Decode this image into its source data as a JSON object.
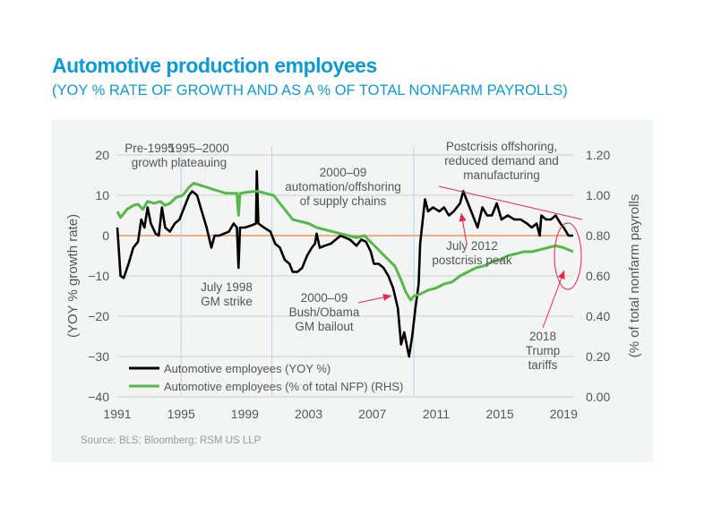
{
  "chart_data": {
    "type": "line",
    "title": "Automotive production employees",
    "subtitle": "(YOY % RATE OF GROWTH AND AS A % OF TOTAL NONFARM PAYROLLS)",
    "ylabel": "(YOY % growth rate)",
    "y2label": "(% of total nonfarm payrolls",
    "xlim": [
      1991,
      2019.6
    ],
    "ylim": [
      -40,
      20
    ],
    "y2lim": [
      0,
      1.2
    ],
    "xticks": [
      "1991",
      "1995",
      "1999",
      "2003",
      "2007",
      "2011",
      "2015",
      "2019"
    ],
    "yticks": [
      "20",
      "10",
      "0",
      "−10",
      "−20",
      "−30",
      "−40"
    ],
    "y2ticks": [
      "1.20",
      "1.00",
      "0.80",
      "0.60",
      "0.40",
      "0.20",
      "0.00"
    ],
    "grid": true,
    "zero_line_color": "#f08a3c",
    "period_dividers": [
      1995,
      2000.7,
      2009.6
    ],
    "legend_position": "bottom-left",
    "source": "Source: BLS; Bloomberg; RSM US LLP",
    "series": [
      {
        "name": "Automotive employees (YOY %)",
        "axis": "left",
        "color": "#000000",
        "x": [
          1991.0,
          1991.2,
          1991.4,
          1991.7,
          1992.0,
          1992.3,
          1992.5,
          1992.7,
          1992.9,
          1993.1,
          1993.4,
          1993.6,
          1993.8,
          1994.0,
          1994.3,
          1994.6,
          1994.9,
          1995.2,
          1995.5,
          1995.7,
          1996.0,
          1996.3,
          1996.6,
          1996.9,
          1997.1,
          1997.4,
          1997.7,
          1998.0,
          1998.3,
          1998.5,
          1998.6,
          1998.7,
          1999.0,
          1999.4,
          1999.7,
          1999.75,
          1999.85,
          2000.2,
          2000.6,
          2000.9,
          2001.2,
          2001.5,
          2001.8,
          2002.0,
          2002.3,
          2002.6,
          2002.9,
          2003.2,
          2003.4,
          2003.5,
          2003.7,
          2004.0,
          2004.4,
          2004.7,
          2005.0,
          2005.3,
          2005.6,
          2006.0,
          2006.3,
          2006.6,
          2006.9,
          2007.1,
          2007.4,
          2007.7,
          2008.0,
          2008.3,
          2008.6,
          2008.8,
          2009.0,
          2009.3,
          2009.5,
          2009.7,
          2009.9,
          2010.0,
          2010.3,
          2010.5,
          2010.8,
          2011.2,
          2011.5,
          2011.8,
          2012.1,
          2012.5,
          2012.7,
          2013.0,
          2013.3,
          2013.6,
          2013.9,
          2014.2,
          2014.5,
          2014.8,
          2015.1,
          2015.5,
          2015.9,
          2016.3,
          2016.7,
          2017.0,
          2017.3,
          2017.5,
          2017.6,
          2017.9,
          2018.2,
          2018.5,
          2018.8,
          2019.0,
          2019.3,
          2019.6
        ],
        "values": [
          2,
          -10,
          -10.5,
          -7,
          -3,
          -1.5,
          4,
          2,
          7,
          3,
          0.5,
          0,
          7,
          2,
          1,
          3,
          4,
          7,
          10,
          11,
          10,
          6,
          2,
          -3,
          0,
          0,
          0.5,
          1,
          3,
          2,
          -8,
          2,
          2,
          2.5,
          3,
          16,
          3,
          2,
          1,
          -2,
          -3,
          -6,
          -7,
          -9,
          -9,
          -8,
          -5,
          -3,
          -2,
          0.5,
          -3,
          -2.5,
          -2,
          -1,
          0,
          -0.5,
          -1,
          -2.5,
          -1,
          -1.5,
          -4,
          -7,
          -7,
          -8,
          -10,
          -13,
          -18,
          -27,
          -24,
          -30,
          -25,
          -18,
          -12,
          -2,
          9,
          6,
          7,
          6,
          7,
          5,
          6,
          8,
          11,
          8,
          5,
          2,
          7,
          5,
          5,
          8,
          4,
          5,
          4,
          4,
          3,
          2,
          3,
          0,
          5,
          4,
          4,
          5,
          3,
          2,
          0,
          0
        ]
      },
      {
        "name": "Automotive employees (% of total NFP) (RHS)",
        "axis": "right",
        "color": "#55b848",
        "x": [
          1991.0,
          1991.2,
          1991.6,
          1992.0,
          1992.3,
          1992.6,
          1992.9,
          1993.3,
          1993.7,
          1994.0,
          1994.3,
          1994.7,
          1995.1,
          1995.5,
          1995.8,
          1996.2,
          1996.6,
          1997.0,
          1997.4,
          1997.8,
          1998.2,
          1998.5,
          1998.6,
          1998.7,
          1999.2,
          1999.8,
          2000.3,
          2000.8,
          2001.2,
          2001.6,
          2002.0,
          2002.5,
          2003.0,
          2003.5,
          2004.0,
          2004.5,
          2005.0,
          2005.5,
          2006.0,
          2006.5,
          2007.0,
          2007.5,
          2008.0,
          2008.4,
          2008.8,
          2009.1,
          2009.4,
          2009.6,
          2010.0,
          2010.5,
          2011.0,
          2011.5,
          2012.0,
          2012.5,
          2013.0,
          2013.5,
          2014.0,
          2014.5,
          2015.0,
          2015.5,
          2016.0,
          2016.5,
          2017.0,
          2017.5,
          2018.0,
          2018.5,
          2019.0,
          2019.6
        ],
        "values": [
          0.92,
          0.89,
          0.93,
          0.95,
          0.956,
          0.93,
          0.97,
          0.96,
          0.97,
          0.95,
          0.96,
          0.99,
          1.0,
          1.04,
          1.06,
          1.05,
          1.04,
          1.03,
          1.02,
          1.01,
          1.01,
          1.01,
          0.9,
          1.01,
          1.016,
          1.02,
          1.01,
          1.0,
          0.96,
          0.92,
          0.88,
          0.87,
          0.86,
          0.84,
          0.83,
          0.82,
          0.81,
          0.8,
          0.79,
          0.8,
          0.76,
          0.72,
          0.68,
          0.65,
          0.58,
          0.52,
          0.48,
          0.5,
          0.51,
          0.53,
          0.54,
          0.56,
          0.57,
          0.6,
          0.62,
          0.64,
          0.65,
          0.67,
          0.68,
          0.7,
          0.71,
          0.72,
          0.72,
          0.73,
          0.74,
          0.75,
          0.74,
          0.72
        ]
      }
    ],
    "annotations": {
      "pre1995": [
        "Pre-1995",
        "growth"
      ],
      "plateau": [
        "1995–2000",
        "plateauing"
      ],
      "automation": [
        "2000–09",
        "automation/offshoring",
        "of supply chains"
      ],
      "strike": [
        "July 1998",
        "GM strike"
      ],
      "bailout": [
        "2000–09",
        "Bush/Obama",
        "GM bailout"
      ],
      "postcrisis": [
        "Postcrisis offshoring,",
        "reduced demand and",
        "manufacturing"
      ],
      "peak": [
        "July 2012",
        "postcrisis peak"
      ],
      "tariffs": [
        "2018",
        "Trump",
        "tariffs"
      ]
    },
    "annotation_color": "#e8234a"
  }
}
